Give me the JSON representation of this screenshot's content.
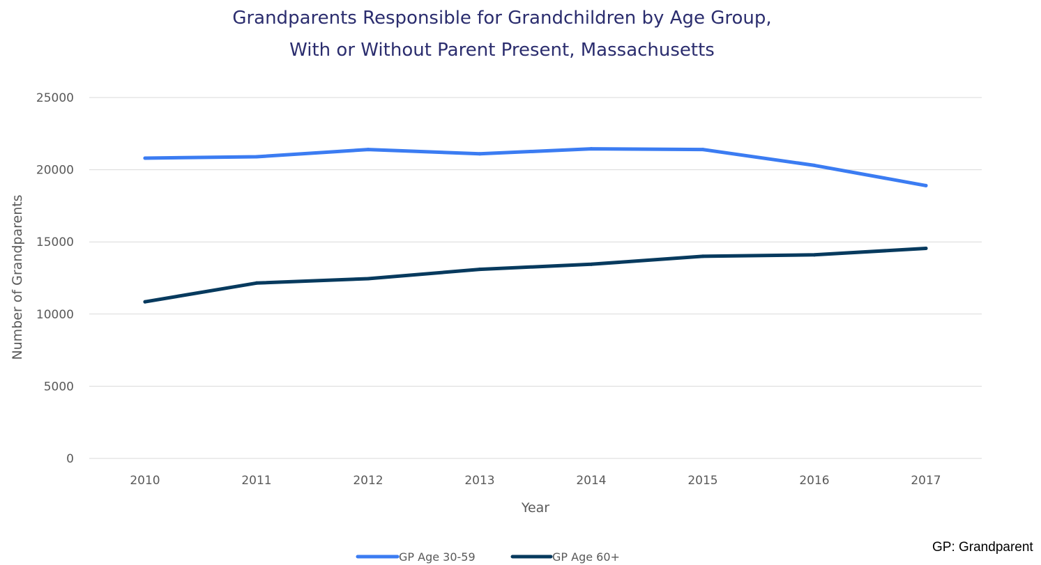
{
  "chart_data": {
    "type": "line",
    "title": "Grandparents Responsible for  Grandchildren by Age Group, With or Without Parent Present, Massachusetts",
    "title_lines": [
      "Grandparents Responsible for  Grandchildren by Age Group,",
      "With or Without Parent Present, Massachusetts"
    ],
    "xlabel": "Year",
    "ylabel": "Number of Grandparents",
    "categories": [
      "2010",
      "2011",
      "2012",
      "2013",
      "2014",
      "2015",
      "2016",
      "2017"
    ],
    "ylim": [
      0,
      25000
    ],
    "yticks": [
      0,
      5000,
      10000,
      15000,
      20000,
      25000
    ],
    "grid": true,
    "legend_position": "bottom",
    "series": [
      {
        "name": "GP Age 30-59",
        "color": "#3b7cf2",
        "values": [
          20800,
          20900,
          21400,
          21100,
          21450,
          21400,
          20300,
          18900
        ]
      },
      {
        "name": "GP Age 60+",
        "color": "#073a5e",
        "values": [
          10850,
          12150,
          12450,
          13100,
          13450,
          14000,
          14100,
          14550
        ]
      }
    ],
    "annotations": [
      "GP: Grandparent"
    ]
  }
}
